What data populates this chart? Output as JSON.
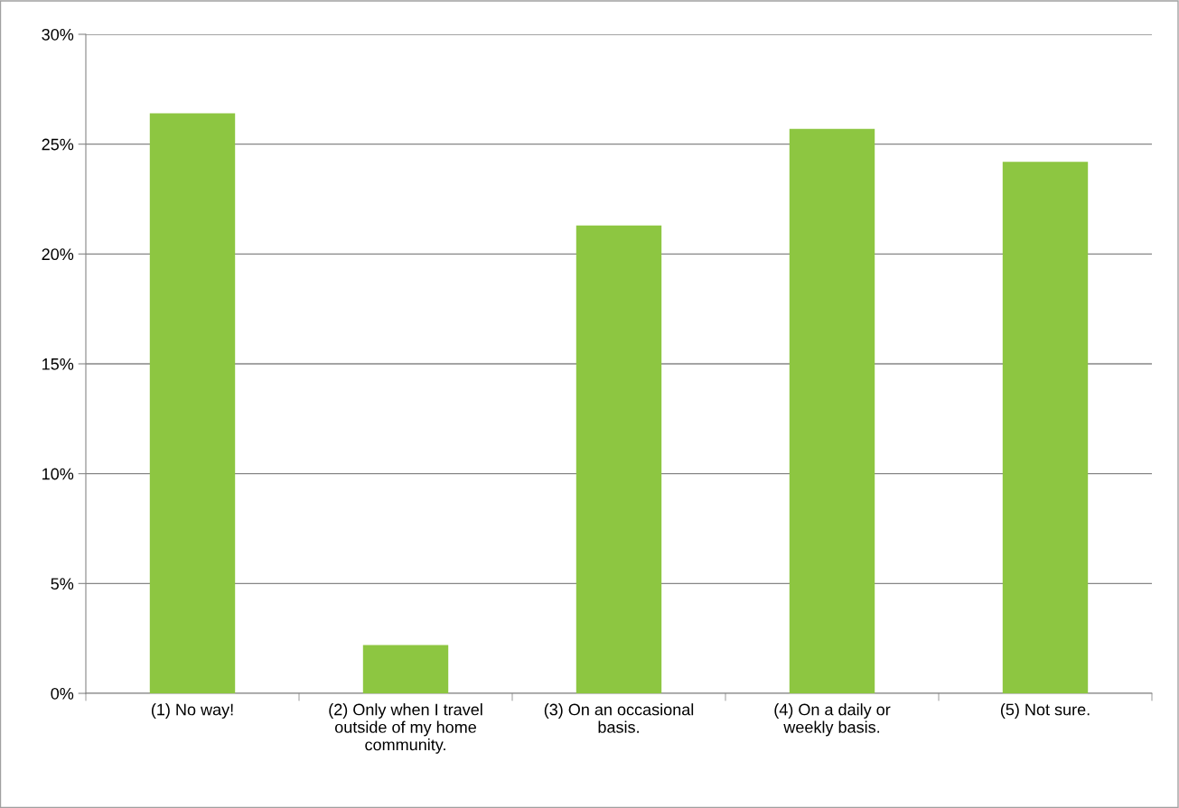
{
  "chart_data": {
    "type": "bar",
    "categories": [
      "(1) No way!",
      "(2) Only when I travel\noutside of my home\ncommunity.",
      "(3) On an occasional\nbasis.",
      "(4) On a daily or\nweekly basis.",
      "(5) Not sure."
    ],
    "values": [
      26.4,
      2.2,
      21.3,
      25.7,
      24.2
    ],
    "color": "#8dc641",
    "ylim": [
      0,
      30
    ],
    "yticks": [
      {
        "value": 0,
        "label": "0%"
      },
      {
        "value": 5,
        "label": "5%"
      },
      {
        "value": 10,
        "label": "10%"
      },
      {
        "value": 15,
        "label": "15%"
      },
      {
        "value": 20,
        "label": "20%"
      },
      {
        "value": 25,
        "label": "25%"
      },
      {
        "value": 30,
        "label": "30%"
      }
    ],
    "grid": "y"
  }
}
